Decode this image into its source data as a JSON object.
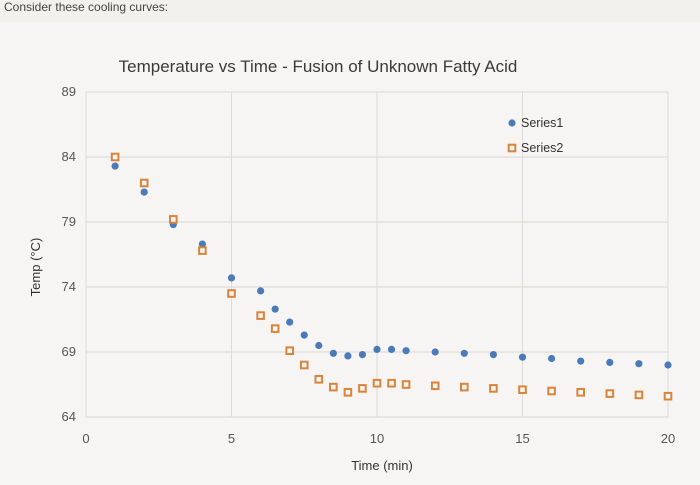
{
  "prompt_text": "Consider these cooling curves:",
  "chart_data": {
    "type": "scatter",
    "title": "Temperature vs Time - Fusion of Unknown Fatty Acid",
    "xlabel": "Time (min)",
    "ylabel": "Temp (°C)",
    "xlim": [
      0,
      20
    ],
    "ylim": [
      64,
      89
    ],
    "xticks": [
      "0",
      "5",
      "10",
      "15",
      "20"
    ],
    "yticks": [
      "89",
      "84",
      "79",
      "74",
      "69",
      "64"
    ],
    "grid": true,
    "legend_position": "top-right",
    "series": [
      {
        "name": "Series1",
        "marker": "circle",
        "color": "#4a7ab8",
        "points": [
          [
            1,
            83.3
          ],
          [
            2,
            81.3
          ],
          [
            3,
            78.8
          ],
          [
            4,
            77.3
          ],
          [
            5,
            74.7
          ],
          [
            6,
            73.7
          ],
          [
            6.5,
            72.3
          ],
          [
            7,
            71.3
          ],
          [
            7.5,
            70.3
          ],
          [
            8,
            69.5
          ],
          [
            8.5,
            68.9
          ],
          [
            9,
            68.7
          ],
          [
            9.5,
            68.8
          ],
          [
            10,
            69.2
          ],
          [
            10.5,
            69.2
          ],
          [
            11,
            69.1
          ],
          [
            12,
            69.0
          ],
          [
            13,
            68.9
          ],
          [
            14,
            68.8
          ],
          [
            15,
            68.6
          ],
          [
            16,
            68.5
          ],
          [
            17,
            68.3
          ],
          [
            18,
            68.2
          ],
          [
            19,
            68.1
          ],
          [
            20,
            68.0
          ]
        ]
      },
      {
        "name": "Series2",
        "marker": "square",
        "color": "#d9843a",
        "points": [
          [
            1,
            84.0
          ],
          [
            2,
            82.0
          ],
          [
            3,
            79.2
          ],
          [
            4,
            76.8
          ],
          [
            5,
            73.5
          ],
          [
            6,
            71.8
          ],
          [
            6.5,
            70.8
          ],
          [
            7,
            69.1
          ],
          [
            7.5,
            68.0
          ],
          [
            8,
            66.9
          ],
          [
            8.5,
            66.3
          ],
          [
            9,
            65.9
          ],
          [
            9.5,
            66.2
          ],
          [
            10,
            66.6
          ],
          [
            10.5,
            66.6
          ],
          [
            11,
            66.5
          ],
          [
            12,
            66.4
          ],
          [
            13,
            66.3
          ],
          [
            14,
            66.2
          ],
          [
            15,
            66.1
          ],
          [
            16,
            66.0
          ],
          [
            17,
            65.9
          ],
          [
            18,
            65.8
          ],
          [
            19,
            65.7
          ],
          [
            20,
            65.6
          ]
        ]
      }
    ]
  }
}
